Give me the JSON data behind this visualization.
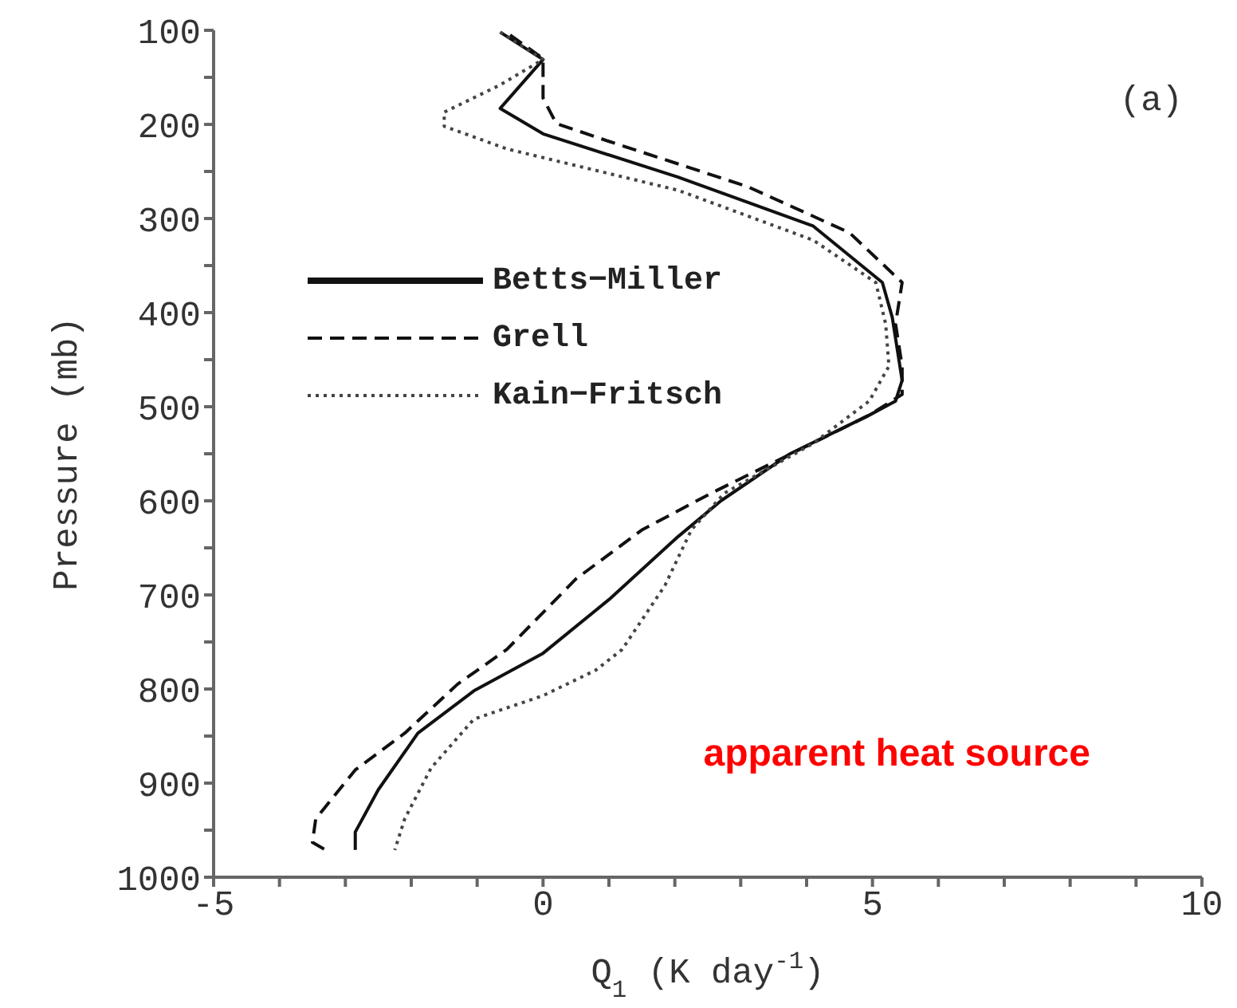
{
  "chart_data": {
    "type": "line",
    "xlabel": "Q$_{1}$ (K day$^{-1}$)",
    "ylabel": "Pressure (mb)",
    "annotations": [
      "(a)",
      "apparent heat source"
    ],
    "xlim": [
      -5,
      10
    ],
    "xticks": [
      -5,
      {
        "value": -4,
        "label": null
      },
      {
        "value": -3,
        "label": null
      },
      {
        "value": -2,
        "label": null
      },
      {
        "value": -1,
        "label": null
      },
      0,
      {
        "value": 1,
        "label": null
      },
      {
        "value": 2,
        "label": null
      },
      {
        "value": 3,
        "label": null
      },
      {
        "value": 4,
        "label": null
      },
      5,
      {
        "value": 6,
        "label": null
      },
      {
        "value": 7,
        "label": null
      },
      {
        "value": 8,
        "label": null
      },
      {
        "value": 9,
        "label": null
      },
      10
    ],
    "ylim": [
      1000,
      100
    ],
    "yticks": [
      100,
      {
        "value": 150,
        "label": null
      },
      200,
      {
        "value": 250,
        "label": null
      },
      300,
      {
        "value": 350,
        "label": null
      },
      400,
      {
        "value": 450,
        "label": null
      },
      500,
      {
        "value": 550,
        "label": null
      },
      600,
      {
        "value": 650,
        "label": null
      },
      700,
      {
        "value": 750,
        "label": null
      },
      800,
      {
        "value": 850,
        "label": null
      },
      900,
      {
        "value": 950,
        "label": null
      },
      1000
    ],
    "grid": false,
    "legend": "left",
    "marker": "none",
    "series": [
      {
        "name": "Betts−Miller",
        "color": "#111111",
        "line_style": "solid",
        "x": [
          -0.65,
          0.0,
          -0.65,
          0.0,
          2.05,
          4.1,
          5.15,
          5.3,
          5.45,
          5.35,
          4.95,
          3.75,
          2.7,
          2.05,
          1.0,
          0.0,
          -1.05,
          -1.9,
          -2.5,
          -2.85,
          -2.85
        ],
        "values": [
          102,
          131,
          183,
          210,
          256,
          308,
          368,
          405,
          472,
          494,
          509,
          550,
          600,
          638,
          705,
          762,
          802,
          847,
          907,
          952,
          971
        ]
      },
      {
        "name": "Grell",
        "color": "#111111",
        "line_style": "dashed",
        "x": [
          -0.5,
          0.0,
          0.0,
          0.2,
          1.0,
          3.1,
          4.65,
          5.45,
          5.35,
          5.45,
          5.45,
          4.95,
          2.55,
          1.5,
          0.5,
          -0.55,
          -1.3,
          -2.1,
          -2.85,
          -3.45,
          -3.5,
          -3.3
        ],
        "values": [
          105,
          130,
          172,
          199,
          218,
          266,
          315,
          368,
          412,
          457,
          487,
          509,
          592,
          631,
          683,
          758,
          795,
          847,
          886,
          938,
          963,
          971
        ]
      },
      {
        "name": "Kain−Fritsch",
        "color": "#444444",
        "line_style": "dotted",
        "x": [
          -0.65,
          0.0,
          -0.65,
          -1.5,
          -1.5,
          -0.55,
          2.05,
          4.1,
          5.05,
          5.2,
          5.25,
          4.95,
          4.1,
          2.75,
          2.25,
          1.85,
          1.2,
          0.8,
          0.0,
          -1.05,
          -1.7,
          -2.1,
          -2.25
        ],
        "values": [
          102,
          131,
          158,
          187,
          202,
          226,
          270,
          323,
          368,
          412,
          457,
          494,
          539,
          592,
          631,
          690,
          758,
          780,
          807,
          832,
          884,
          938,
          971
        ]
      }
    ]
  }
}
